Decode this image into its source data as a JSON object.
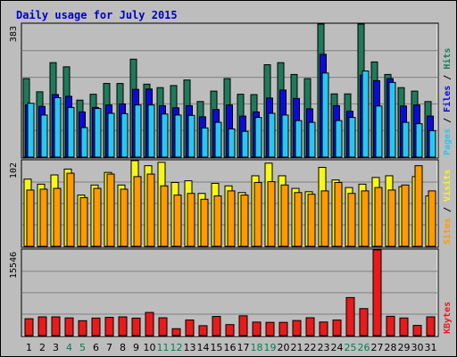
{
  "chart_data": {
    "type": "bar",
    "title": "Daily usage for July 2015",
    "days": [
      "1",
      "2",
      "3",
      "4",
      "5",
      "6",
      "7",
      "8",
      "9",
      "10",
      "11",
      "12",
      "13",
      "14",
      "15",
      "16",
      "17",
      "18",
      "19",
      "20",
      "21",
      "22",
      "23",
      "24",
      "25",
      "26",
      "27",
      "28",
      "29",
      "30",
      "31"
    ],
    "weekend_days": [
      "4",
      "5",
      "11",
      "12",
      "18",
      "19",
      "25",
      "26"
    ],
    "colors": {
      "hits": "#1f7a5c",
      "files": "#0b0bd9",
      "pages": "#28c7f2",
      "visits": "#f6f61a",
      "sites": "#ff9a00",
      "kbytes": "#e81a1a",
      "title": "#0000c8",
      "weekend": "#00804d",
      "weekday": "#000000",
      "label_sep": "#000000"
    },
    "panel_top": {
      "max_label": "383",
      "max": 383,
      "labels": [
        "Pages",
        "Files",
        "Hits"
      ],
      "hits": [
        226,
        188,
        272,
        260,
        164,
        181,
        212,
        212,
        282,
        210,
        200,
        206,
        222,
        160,
        190,
        226,
        181,
        180,
        266,
        272,
        238,
        226,
        383,
        182,
        182,
        383,
        274,
        238,
        200,
        190,
        160
      ],
      "files": [
        150,
        146,
        180,
        175,
        130,
        143,
        150,
        153,
        195,
        196,
        148,
        142,
        148,
        116,
        137,
        150,
        118,
        130,
        170,
        193,
        169,
        139,
        296,
        148,
        132,
        236,
        220,
        226,
        147,
        150,
        118
      ],
      "pages": [
        155,
        121,
        171,
        143,
        85,
        140,
        126,
        125,
        150,
        150,
        124,
        121,
        120,
        84,
        100,
        81,
        74,
        114,
        126,
        121,
        105,
        100,
        242,
        105,
        114,
        248,
        147,
        215,
        100,
        96,
        76
      ]
    },
    "panel_mid": {
      "max_label": "102",
      "max": 102,
      "labels": [
        "Sites",
        "Visits"
      ],
      "visits": [
        80,
        74,
        85,
        92,
        61,
        73,
        88,
        73,
        102,
        96,
        100,
        76,
        78,
        63,
        75,
        72,
        64,
        84,
        99,
        84,
        69,
        65,
        94,
        79,
        70,
        74,
        82,
        84,
        71,
        83,
        60
      ],
      "sites": [
        67,
        68,
        69,
        87,
        58,
        69,
        86,
        68,
        83,
        86,
        72,
        61,
        63,
        56,
        60,
        66,
        61,
        76,
        77,
        73,
        64,
        62,
        66,
        76,
        63,
        66,
        70,
        67,
        73,
        96,
        66
      ]
    },
    "panel_bot": {
      "max_label": "15546",
      "max": 15546,
      "labels": [
        "KBytes"
      ],
      "kbytes": [
        3060,
        3400,
        3400,
        3210,
        2700,
        3180,
        3310,
        3400,
        3170,
        4200,
        3230,
        1250,
        2830,
        1800,
        3480,
        1990,
        3590,
        2450,
        2400,
        2400,
        2730,
        3240,
        2460,
        2820,
        6900,
        4900,
        15546,
        3500,
        3200,
        1850,
        3400
      ]
    }
  }
}
